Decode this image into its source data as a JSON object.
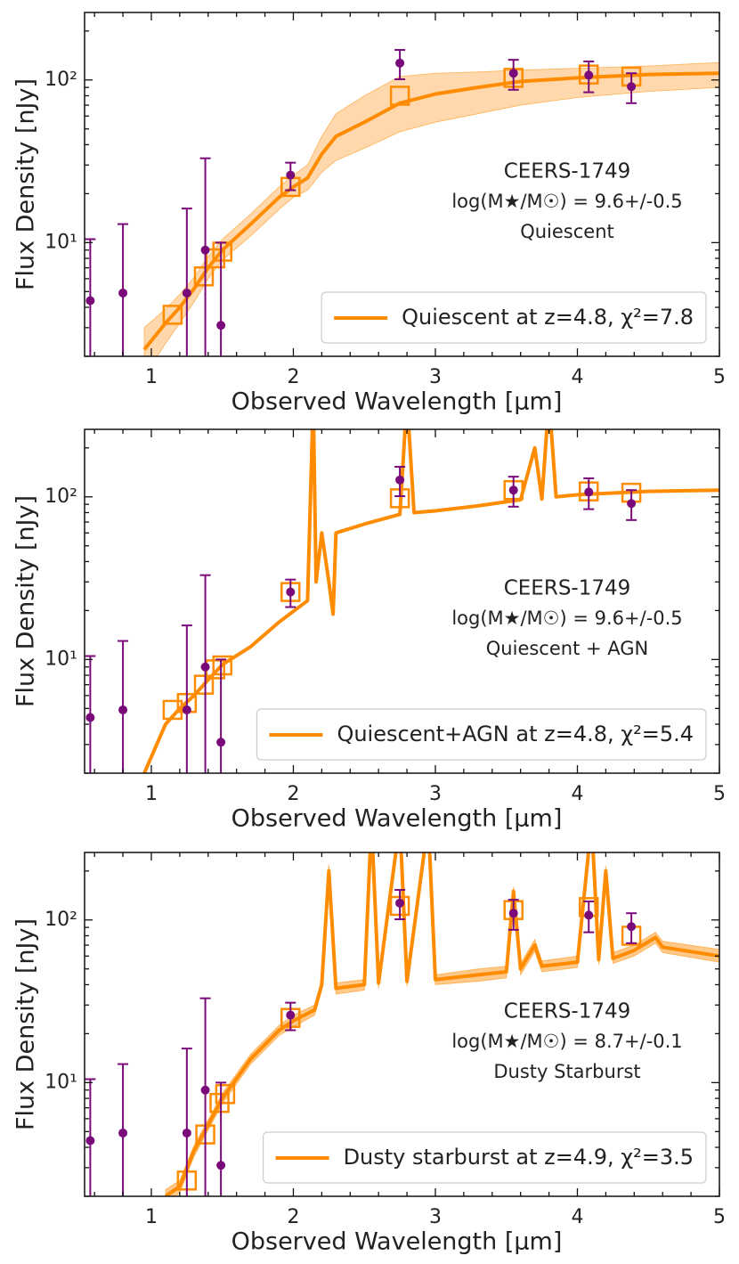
{
  "chart_data": [
    {
      "type": "line",
      "xlabel": "Observed Wavelength [μm]",
      "ylabel": "Flux Density [nJy]",
      "annotations": [
        "CEERS-1749",
        "log(M★/M☉) = 9.6+/-0.5",
        "Quiescent"
      ],
      "xlim": [
        0.53,
        5
      ],
      "ylim": [
        2,
        260
      ],
      "log_y": true,
      "legend": "lower right",
      "xticks": [
        1,
        2,
        3,
        4,
        5
      ],
      "xticks_minor": [
        0.6,
        0.8,
        1.2,
        1.4,
        1.6,
        1.8,
        2.2,
        2.4,
        2.6,
        2.8,
        3.2,
        3.4,
        3.6,
        3.8,
        4.2,
        4.4,
        4.6,
        4.8
      ],
      "yticks": [
        {
          "value": 10,
          "label": "10¹"
        },
        {
          "value": 100,
          "label": "10²"
        }
      ],
      "yticks_minor": [
        2,
        3,
        4,
        5,
        6,
        7,
        8,
        9,
        20,
        30,
        40,
        50,
        60,
        70,
        80,
        90,
        200
      ],
      "series": [
        {
          "name": "Quiescent at z=4.8, χ²=7.8",
          "color": "#ff8c00",
          "band_color": "#ffd9ad",
          "x": [
            0.95,
            1.1,
            1.2,
            1.3,
            1.4,
            1.5,
            1.7,
            1.9,
            2.0,
            2.1,
            2.2,
            2.3,
            2.5,
            2.75,
            3.0,
            3.3,
            3.6,
            4.0,
            4.5,
            5.0
          ],
          "values": [
            2.2,
            3.2,
            4.0,
            5.2,
            7.0,
            9.0,
            13,
            19,
            22,
            25,
            35,
            45,
            55,
            72,
            82,
            90,
            98,
            103,
            108,
            110
          ],
          "band_lower": [
            1.5,
            2.4,
            3.2,
            4.3,
            6.0,
            7.8,
            11,
            16,
            19,
            21,
            27,
            32,
            38,
            48,
            55,
            62,
            70,
            78,
            85,
            90
          ],
          "band_upper": [
            3.0,
            3.9,
            4.8,
            6.1,
            8.2,
            10.5,
            15,
            22,
            26,
            30,
            45,
            62,
            80,
            105,
            110,
            112,
            115,
            118,
            122,
            128
          ]
        }
      ],
      "model_points": {
        "color": "#ff8c00",
        "x": [
          1.15,
          1.37,
          1.45,
          1.5,
          1.98,
          2.75,
          3.55,
          4.08,
          4.38
        ],
        "values": [
          3.6,
          6.2,
          8.0,
          8.8,
          22,
          80,
          103,
          108,
          105
        ]
      },
      "observed": {
        "color": "#7a0a7a",
        "x": [
          0.57,
          0.8,
          1.25,
          1.38,
          1.49,
          1.98,
          2.75,
          3.55,
          4.08,
          4.38
        ],
        "values": [
          4.4,
          4.9,
          4.9,
          9,
          3.1,
          26,
          127,
          110,
          107,
          91
        ],
        "errors": [
          6.1,
          8.1,
          11.3,
          24,
          6.9,
          5,
          26,
          23,
          23,
          19
        ]
      }
    },
    {
      "type": "line",
      "xlabel": "Observed Wavelength [μm]",
      "ylabel": "Flux Density [nJy]",
      "annotations": [
        "CEERS-1749",
        "log(M★/M☉) = 9.6+/-0.5",
        "Quiescent + AGN"
      ],
      "xlim": [
        0.53,
        5
      ],
      "ylim": [
        2,
        260
      ],
      "log_y": true,
      "legend": "lower right",
      "xticks": [
        1,
        2,
        3,
        4,
        5
      ],
      "xticks_minor": [
        0.6,
        0.8,
        1.2,
        1.4,
        1.6,
        1.8,
        2.2,
        2.4,
        2.6,
        2.8,
        3.2,
        3.4,
        3.6,
        3.8,
        4.2,
        4.4,
        4.6,
        4.8
      ],
      "yticks": [
        {
          "value": 10,
          "label": "10¹"
        },
        {
          "value": 100,
          "label": "10²"
        }
      ],
      "yticks_minor": [
        2,
        3,
        4,
        5,
        6,
        7,
        8,
        9,
        20,
        30,
        40,
        50,
        60,
        70,
        80,
        90,
        200
      ],
      "series": [
        {
          "name": "Quiescent+AGN at z=4.8, χ²=5.4",
          "color": "#ff8c00",
          "x": [
            0.95,
            1.1,
            1.2,
            1.3,
            1.4,
            1.5,
            1.7,
            1.9,
            2.1,
            2.14,
            2.16,
            2.2,
            2.25,
            2.28,
            2.3,
            2.5,
            2.75,
            2.8,
            2.85,
            3.0,
            3.3,
            3.6,
            3.7,
            3.75,
            3.8,
            3.85,
            4.0,
            4.5,
            5.0
          ],
          "values": [
            2.0,
            4.0,
            5.0,
            6.0,
            7.5,
            9.3,
            12,
            17,
            23,
            400,
            30,
            60,
            30,
            19,
            60,
            68,
            78,
            400,
            80,
            82,
            88,
            96,
            200,
            97,
            400,
            100,
            103,
            108,
            110
          ]
        }
      ],
      "model_points": {
        "color": "#ff8c00",
        "x": [
          1.15,
          1.25,
          1.37,
          1.45,
          1.5,
          1.98,
          2.75,
          3.55,
          4.08,
          4.38
        ],
        "values": [
          4.9,
          5.4,
          7.0,
          8.7,
          9.2,
          26,
          98,
          110,
          108,
          106
        ]
      },
      "observed": {
        "color": "#7a0a7a",
        "x": [
          0.57,
          0.8,
          1.25,
          1.38,
          1.49,
          1.98,
          2.75,
          3.55,
          4.08,
          4.38
        ],
        "values": [
          4.4,
          4.9,
          4.9,
          9,
          3.1,
          26,
          127,
          110,
          107,
          91
        ],
        "errors": [
          6.1,
          8.1,
          11.3,
          24,
          6.9,
          5,
          26,
          23,
          23,
          19
        ]
      }
    },
    {
      "type": "line",
      "xlabel": "Observed Wavelength [μm]",
      "ylabel": "Flux Density [nJy]",
      "annotations": [
        "CEERS-1749",
        "log(M★/M☉) = 8.7+/-0.1",
        "Dusty Starburst"
      ],
      "xlim": [
        0.53,
        5
      ],
      "ylim": [
        2,
        260
      ],
      "log_y": true,
      "legend": "lower right",
      "xticks": [
        1,
        2,
        3,
        4,
        5
      ],
      "xticks_minor": [
        0.6,
        0.8,
        1.2,
        1.4,
        1.6,
        1.8,
        2.2,
        2.4,
        2.6,
        2.8,
        3.2,
        3.4,
        3.6,
        3.8,
        4.2,
        4.4,
        4.6,
        4.8
      ],
      "yticks": [
        {
          "value": 10,
          "label": "10¹"
        },
        {
          "value": 100,
          "label": "10²"
        }
      ],
      "yticks_minor": [
        2,
        3,
        4,
        5,
        6,
        7,
        8,
        9,
        20,
        30,
        40,
        50,
        60,
        70,
        80,
        90,
        200
      ],
      "series": [
        {
          "name": "Dusty starburst at z=4.9, χ²=3.5",
          "color": "#ff8c00",
          "band_color": "#ffc98a",
          "x": [
            1.1,
            1.2,
            1.3,
            1.4,
            1.5,
            1.7,
            1.9,
            2.0,
            2.15,
            2.2,
            2.25,
            2.3,
            2.5,
            2.55,
            2.6,
            2.75,
            2.8,
            2.95,
            3.0,
            3.3,
            3.5,
            3.55,
            3.6,
            3.7,
            3.75,
            4.0,
            4.1,
            4.15,
            4.2,
            4.25,
            4.4,
            4.55,
            4.6,
            5.0
          ],
          "values": [
            2.0,
            2.3,
            3.8,
            5.5,
            8,
            14,
            21,
            24,
            28,
            40,
            200,
            38,
            40,
            400,
            41,
            400,
            42,
            400,
            43,
            46,
            48,
            150,
            50,
            70,
            52,
            55,
            400,
            57,
            200,
            58,
            65,
            78,
            68,
            60
          ],
          "band_lower": [
            1.8,
            2.1,
            3.5,
            5.1,
            7.4,
            13,
            19.5,
            22,
            26,
            37,
            180,
            35,
            37,
            370,
            38,
            370,
            39,
            370,
            40,
            42,
            44,
            140,
            46,
            64,
            48,
            51,
            370,
            53,
            185,
            54,
            60,
            72,
            63,
            55
          ],
          "band_upper": [
            2.2,
            2.5,
            4.1,
            5.9,
            8.6,
            15,
            22.5,
            26,
            30,
            43,
            220,
            41,
            43,
            430,
            44,
            430,
            45,
            430,
            46,
            50,
            52,
            160,
            54,
            76,
            56,
            60,
            430,
            62,
            215,
            63,
            70,
            84,
            74,
            66
          ]
        }
      ],
      "model_points": {
        "color": "#ff8c00",
        "x": [
          1.25,
          1.38,
          1.48,
          1.52,
          1.98,
          2.75,
          3.55,
          4.08,
          4.38
        ],
        "values": [
          2.5,
          4.8,
          7.5,
          8.5,
          25,
          122,
          115,
          120,
          80
        ]
      },
      "observed": {
        "color": "#7a0a7a",
        "x": [
          0.57,
          0.8,
          1.25,
          1.38,
          1.49,
          1.98,
          2.75,
          3.55,
          4.08,
          4.38
        ],
        "values": [
          4.4,
          4.9,
          4.9,
          9,
          3.1,
          26,
          127,
          110,
          107,
          91
        ],
        "errors": [
          6.1,
          8.1,
          11.3,
          24,
          6.9,
          5,
          26,
          23,
          23,
          19
        ]
      }
    }
  ]
}
